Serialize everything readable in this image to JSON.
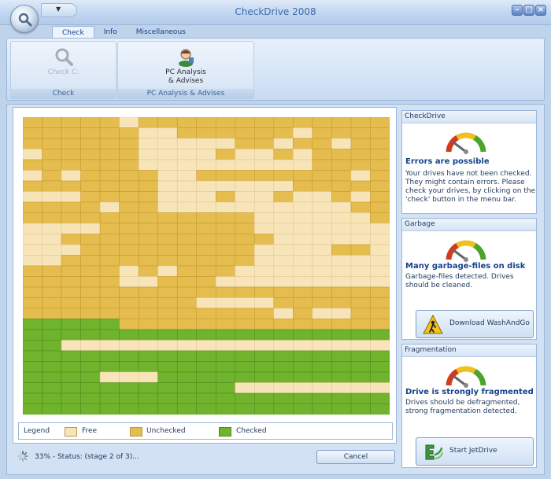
{
  "window": {
    "title": "CheckDrive 2008"
  },
  "ribbon": {
    "tabs": [
      {
        "label": "Check",
        "active": true
      },
      {
        "label": "Info",
        "active": false
      },
      {
        "label": "Miscellaneous",
        "active": false
      }
    ],
    "groups": [
      {
        "caption": "Check",
        "button_label": "Check C:",
        "icon": "magnifier-icon",
        "enabled": false
      },
      {
        "caption": "PC Analysis & Advises",
        "button_label": "PC Analysis\n& Advises",
        "icon": "advisor-person-icon",
        "enabled": true
      }
    ]
  },
  "legend": {
    "title": "Legend",
    "items": [
      {
        "label": "Free",
        "color": "#f7e4b8"
      },
      {
        "label": "Unchecked",
        "color": "#e5bd4f"
      },
      {
        "label": "Checked",
        "color": "#6fb42c"
      }
    ]
  },
  "status": {
    "text": "33% - Status: (stage 2 of 3)...",
    "progress_percent": 33,
    "cancel_label": "Cancel"
  },
  "panels": [
    {
      "header": "CheckDrive",
      "title": "Errors are possible",
      "description": "Your drives have not been checked. They might contain errors. Please check your drives, by clicking on the 'check' button in the menu bar.",
      "icon": "gauge-icon"
    },
    {
      "header": "Garbage",
      "title": "Many garbage-files on disk",
      "description": "Garbage-files detected. Drives should be cleaned.",
      "icon": "gauge-icon",
      "button_label": "Download WashAndGo",
      "button_icon": "washandgo-icon"
    },
    {
      "header": "Fragmentation",
      "title": "Drive is strongly fragmented",
      "description": "Drives should be defragmented, strong fragmentation detected.",
      "icon": "gauge-icon",
      "button_label": "Start JetDrive",
      "button_icon": "jetdrive-icon"
    }
  ],
  "cluster_map": {
    "rows": 28,
    "cols": 19,
    "legend_codes": {
      "F": "Free",
      "U": "Unchecked",
      "C": "Checked"
    },
    "cells": [
      "UUUUUFUUUUUUUUUUUUU",
      "UUUUUUFFUUUUUUFUUUU",
      "UUUUUUFFFFFUUFUUFUU",
      "FUUUUUFFFFUFFUFUUUU",
      "UUUUUUFFFFFFFFFUUUU",
      "FUFUUUUFFUUUUUUUUFU",
      "UUUUUUUFFFFFFFUUUUU",
      "FFFUUUUFFFUFFUFFUFU",
      "UUUUFUUFFFFFFFFFFUU",
      "UUUUUUUUUUUUFFFFFFU",
      "FFFFUUUUUUUUFFFFFFF",
      "FFUUUUUUUUUUUFFFFFF",
      "FFFUUUUUUUUUFFFFUUF",
      "FFUUUUUUUUUUFFFFFFF",
      "UUUUUFUFUUUFFFFFFFF",
      "UUUUUFFUUUFFFFFFFFF",
      "UUUUUUUUUUUUUUUUUUU",
      "UUUUUUUUUFFFFUUUUUU",
      "UUUUUUUUUUUUUFUFFUU",
      "CCCCCUUUUUUUUUUUUUU",
      "CCCCCCCCCCCCCCCCCCC",
      "CCFFFFFFFFFFFFFFFFF",
      "CCCCCCCCCCCCCCCCCCC",
      "CCCCCCCCCCCCCCCCCCC",
      "CCCCFFFCCCCCCCCCCCC",
      "CCCCCCCCCCCFFFFFFFF",
      "CCCCCCCCCCCCCCCCCCC",
      "CCCCCCCCCCCCCCCCCCC"
    ]
  }
}
